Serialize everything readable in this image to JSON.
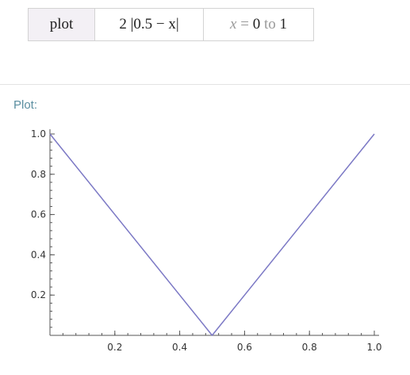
{
  "input": {
    "function_label": "plot",
    "expression": "2 |0.5 − x|",
    "range": {
      "variable": "x",
      "equals": "=",
      "start": "0",
      "connector": "to",
      "end": "1"
    }
  },
  "pod": {
    "title": "Plot:"
  },
  "chart_data": {
    "type": "line",
    "title": "",
    "xlabel": "",
    "ylabel": "",
    "xlim": [
      0,
      1
    ],
    "ylim": [
      0,
      1
    ],
    "x_ticks": [
      0.2,
      0.4,
      0.6,
      0.8,
      1.0
    ],
    "x_tick_labels": [
      "0.2",
      "0.4",
      "0.6",
      "0.8",
      "1.0"
    ],
    "y_ticks": [
      0.2,
      0.4,
      0.6,
      0.8,
      1.0
    ],
    "y_tick_labels": [
      "0.2",
      "0.4",
      "0.6",
      "0.8",
      "1.0"
    ],
    "grid": false,
    "series": [
      {
        "name": "2 |0.5 − x|",
        "x": [
          0,
          0.5,
          1.0
        ],
        "y": [
          1.0,
          0,
          1.0
        ],
        "color": "#7c79c5"
      }
    ]
  }
}
